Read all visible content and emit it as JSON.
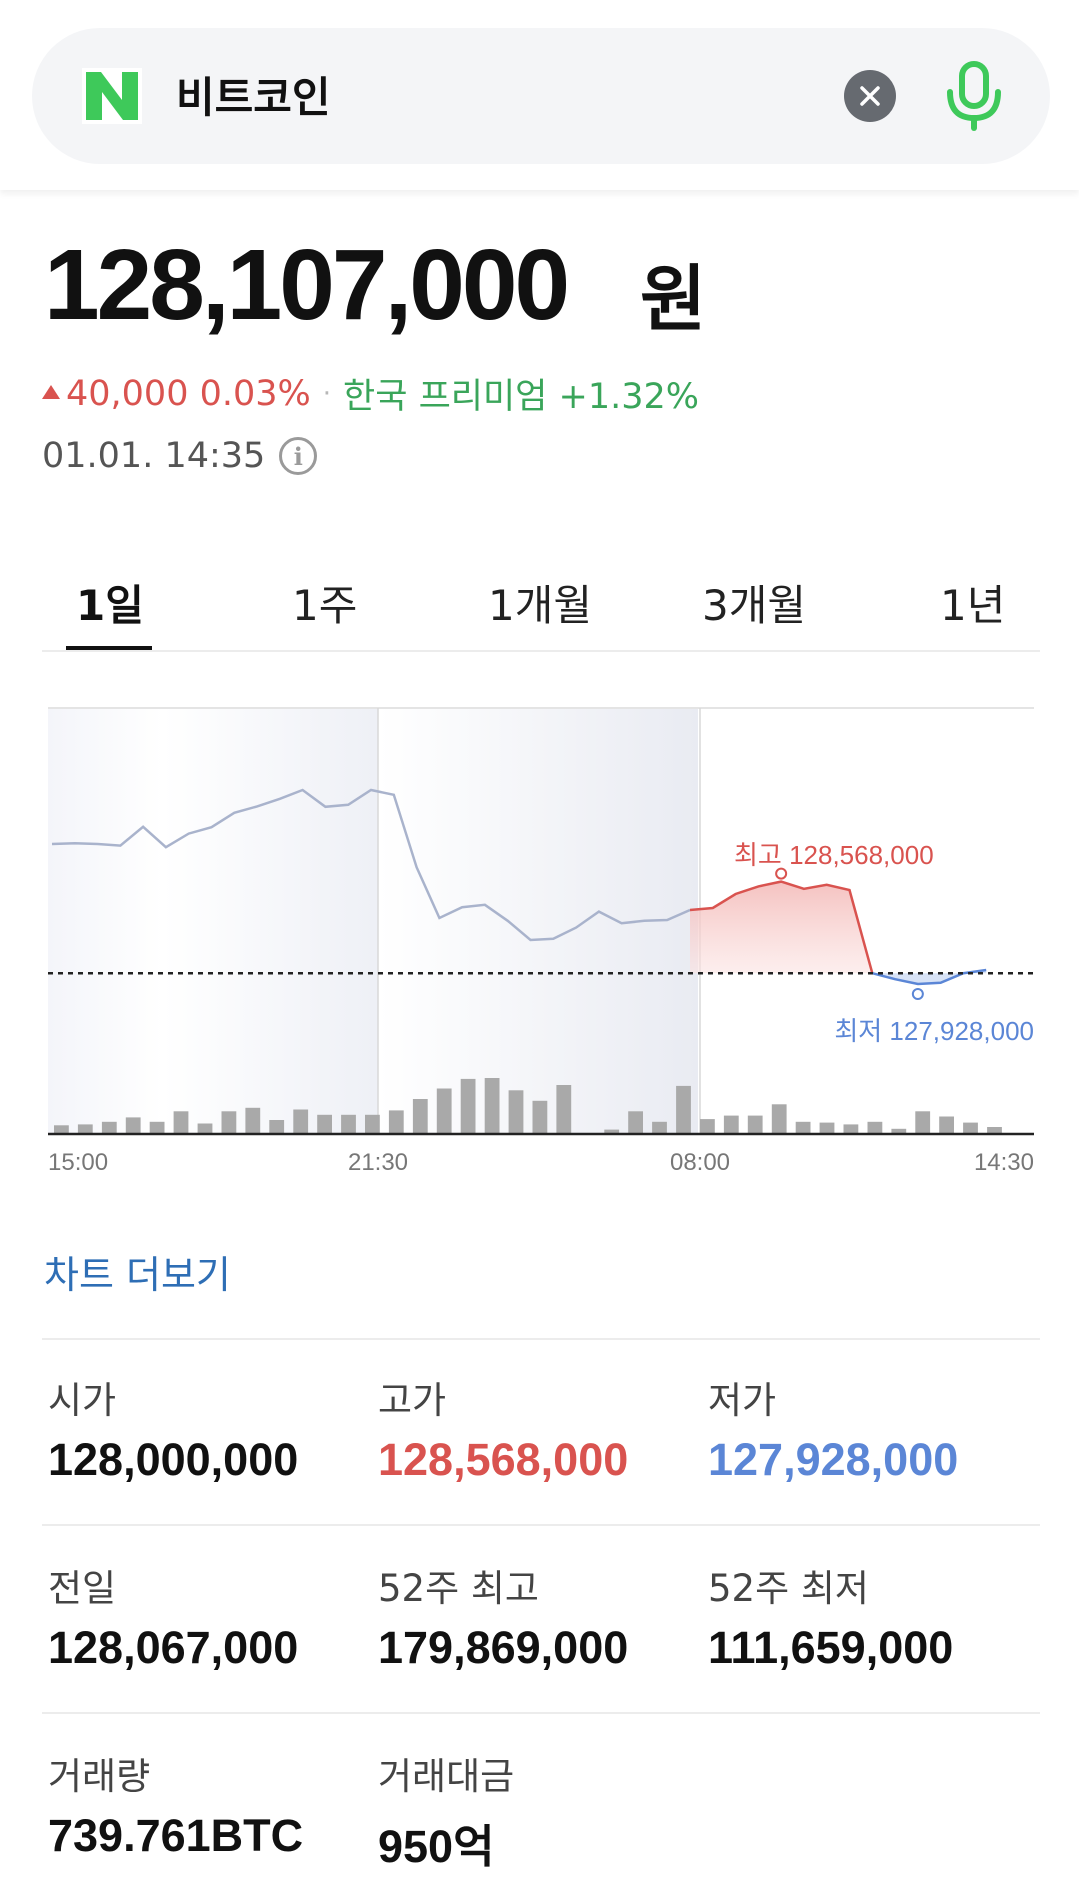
{
  "search": {
    "logo_letter": "N",
    "query": "비트코인"
  },
  "quote": {
    "price": "128,107,000",
    "unit": "원",
    "change": "40,000 0.03%",
    "separator": "·",
    "premium": "한국 프리미엄 +1.32%",
    "timestamp": "01.01. 14:35",
    "info_glyph": "i"
  },
  "tabs": [
    "1일",
    "1주",
    "1개월",
    "3개월",
    "1년"
  ],
  "chart_data": {
    "type": "line",
    "x_tick_labels": [
      "15:00",
      "21:30",
      "08:00",
      "14:30"
    ],
    "high_label": "최고 128,568,000",
    "low_label": "최저 127,928,000",
    "high_value": 128568000,
    "low_value": 127928000,
    "reference_value": 128067000,
    "series": [
      {
        "values": [
          128390000,
          128392000,
          128390000,
          128386000,
          128433000,
          128382000,
          128416000,
          128432000,
          128468000,
          128484000,
          128503000,
          128525000,
          128483000,
          128488000,
          128525000,
          128513000,
          128332000,
          128205000,
          128232000,
          128238000,
          128198000,
          128150000,
          128153000,
          128181000,
          128221000,
          128192000,
          128198000,
          128200000,
          128225000
        ]
      },
      {
        "values": [
          128225000,
          128230000,
          128265000,
          128284000,
          128296000,
          128278000,
          128288000,
          128275000,
          128067000,
          128052000,
          128040000,
          128043000,
          128067000,
          128075000
        ]
      }
    ],
    "volume": [
      10,
      11,
      14,
      19,
      14,
      26,
      12,
      26,
      30,
      16,
      28,
      22,
      22,
      22,
      27,
      40,
      52,
      63,
      64,
      50,
      38,
      56,
      0,
      5,
      26,
      14,
      55,
      17,
      21,
      21,
      34,
      14,
      13,
      11,
      14,
      6,
      26,
      20,
      13,
      8
    ]
  },
  "more_link": "차트 더보기",
  "stats": [
    {
      "label": "시가",
      "value": "128,000,000",
      "color": "#111111"
    },
    {
      "label": "고가",
      "value": "128,568,000",
      "color": "#d9534f"
    },
    {
      "label": "저가",
      "value": "127,928,000",
      "color": "#5b86d6"
    },
    {
      "label": "전일",
      "value": "128,067,000",
      "color": "#111111"
    },
    {
      "label": "52주 최고",
      "value": "179,869,000",
      "color": "#111111"
    },
    {
      "label": "52주 최저",
      "value": "111,659,000",
      "color": "#111111"
    },
    {
      "label": "거래량",
      "value": "739.761BTC",
      "color": "#111111"
    },
    {
      "label": "거래대금",
      "value": "950억",
      "color": "#111111"
    }
  ],
  "colors": {
    "brand_green": "#3ec95a",
    "up_red": "#d9534f",
    "down_blue": "#5b86d6",
    "link_blue": "#2e6eb5",
    "premium_green": "#3aa55a"
  },
  "icons": {
    "logo": "naver-n-logo-icon",
    "clear": "close-icon",
    "voice": "microphone-icon",
    "info": "info-icon",
    "change": "triangle-up-icon"
  }
}
